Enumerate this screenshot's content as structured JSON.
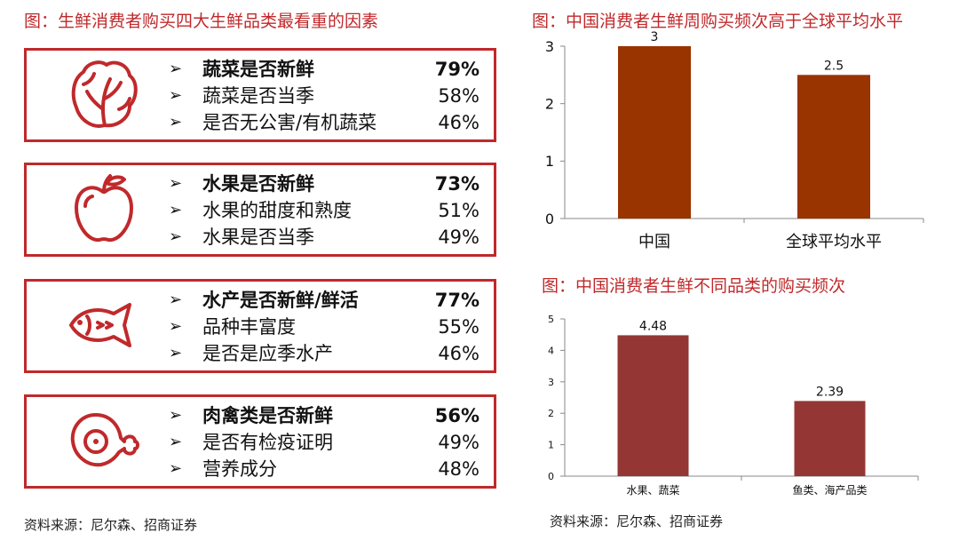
{
  "left_panel": {
    "title": "图：生鲜消费者购买四大生鲜品类最看重的因素",
    "source": "资料来源：尼尔森、招商证券",
    "groups": [
      {
        "icon": "lettuce-icon",
        "items": [
          {
            "label": "蔬菜是否新鲜",
            "pct": "79%",
            "bold": true
          },
          {
            "label": "蔬菜是否当季",
            "pct": "58%",
            "bold": false
          },
          {
            "label": "是否无公害/有机蔬菜",
            "pct": "46%",
            "bold": false
          }
        ]
      },
      {
        "icon": "apple-icon",
        "items": [
          {
            "label": "水果是否新鲜",
            "pct": "73%",
            "bold": true
          },
          {
            "label": "水果的甜度和熟度",
            "pct": "51%",
            "bold": false
          },
          {
            "label": "水果是否当季",
            "pct": "49%",
            "bold": false
          }
        ]
      },
      {
        "icon": "fish-icon",
        "items": [
          {
            "label": "水产是否新鲜/鲜活",
            "pct": "77%",
            "bold": true
          },
          {
            "label": "品种丰富度",
            "pct": "55%",
            "bold": false
          },
          {
            "label": "是否是应季水产",
            "pct": "46%",
            "bold": false
          }
        ]
      },
      {
        "icon": "meat-leg-icon",
        "items": [
          {
            "label": "肉禽类是否新鲜",
            "pct": "56%",
            "bold": true
          },
          {
            "label": "是否有检疫证明",
            "pct": "49%",
            "bold": false
          },
          {
            "label": "营养成分",
            "pct": "48%",
            "bold": false
          }
        ]
      }
    ],
    "colors": {
      "accent": "#c0292b"
    }
  },
  "right_panel": {
    "source": "资料来源：尼尔森、招商证券"
  },
  "chart_data": [
    {
      "type": "bar",
      "title": "图：中国消费者生鲜周购买频次高于全球平均水平",
      "categories": [
        "中国",
        "全球平均水平"
      ],
      "values": [
        3,
        2.5
      ],
      "data_labels": [
        "3",
        "2.5"
      ],
      "y_ticks": [
        "0",
        "1",
        "2",
        "3"
      ],
      "ylim": [
        0,
        3
      ],
      "xlabel": "",
      "ylabel": "",
      "grid": false,
      "color": "#993300"
    },
    {
      "type": "bar",
      "title": "图：中国消费者生鲜不同品类的购买频次",
      "categories": [
        "水果、蔬菜",
        "鱼类、海产品类"
      ],
      "values": [
        4.48,
        2.39
      ],
      "data_labels": [
        "4.48",
        "2.39"
      ],
      "y_ticks": [
        "0",
        "1",
        "2",
        "3",
        "4",
        "5"
      ],
      "ylim": [
        0,
        5
      ],
      "xlabel": "",
      "ylabel": "",
      "grid": false,
      "color": "#943634"
    }
  ]
}
